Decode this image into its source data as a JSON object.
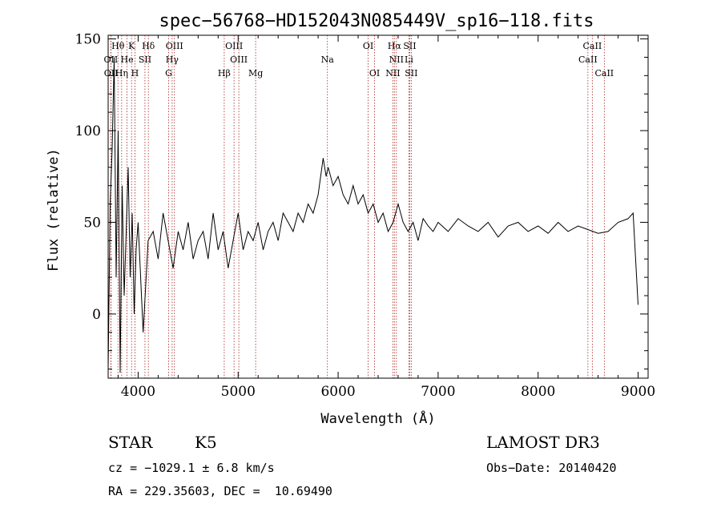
{
  "chart_data": {
    "type": "line",
    "title": "spec−56768−HD152043N085449V_sp16−118.fits",
    "xlabel": "Wavelength (Å)",
    "ylabel": "Flux (relative)",
    "xlim": [
      3700,
      9100
    ],
    "ylim": [
      -35,
      152
    ],
    "x_ticks": [
      4000,
      5000,
      6000,
      7000,
      8000,
      9000
    ],
    "y_ticks": [
      0,
      50,
      100,
      150
    ],
    "series": [
      {
        "name": "flux",
        "x": [
          3700,
          3720,
          3740,
          3760,
          3780,
          3800,
          3820,
          3840,
          3860,
          3880,
          3900,
          3920,
          3940,
          3960,
          3980,
          4000,
          4050,
          4100,
          4150,
          4200,
          4250,
          4300,
          4350,
          4400,
          4450,
          4500,
          4550,
          4600,
          4650,
          4700,
          4750,
          4800,
          4850,
          4900,
          4950,
          5000,
          5050,
          5100,
          5150,
          5200,
          5250,
          5300,
          5350,
          5400,
          5450,
          5500,
          5550,
          5600,
          5650,
          5700,
          5750,
          5800,
          5850,
          5880,
          5900,
          5950,
          6000,
          6050,
          6100,
          6150,
          6200,
          6250,
          6300,
          6350,
          6400,
          6450,
          6500,
          6550,
          6600,
          6650,
          6700,
          6750,
          6800,
          6850,
          6900,
          6950,
          7000,
          7100,
          7200,
          7300,
          7400,
          7500,
          7600,
          7700,
          7800,
          7900,
          8000,
          8100,
          8200,
          8300,
          8400,
          8500,
          8600,
          8700,
          8800,
          8900,
          8950,
          9000
        ],
        "y": [
          -30,
          60,
          90,
          140,
          20,
          100,
          -32,
          70,
          10,
          45,
          80,
          20,
          55,
          0,
          35,
          50,
          -10,
          40,
          45,
          30,
          55,
          40,
          25,
          45,
          35,
          50,
          30,
          40,
          45,
          30,
          55,
          35,
          45,
          25,
          40,
          55,
          35,
          45,
          40,
          50,
          35,
          45,
          50,
          40,
          55,
          50,
          45,
          55,
          50,
          60,
          55,
          65,
          85,
          75,
          80,
          70,
          75,
          65,
          60,
          70,
          60,
          65,
          55,
          60,
          50,
          55,
          45,
          50,
          60,
          50,
          45,
          50,
          40,
          52,
          48,
          45,
          50,
          45,
          52,
          48,
          45,
          50,
          42,
          48,
          50,
          45,
          48,
          44,
          50,
          45,
          48,
          46,
          44,
          45,
          50,
          52,
          55,
          5
        ]
      }
    ],
    "lines": [
      {
        "name": "Hθ",
        "wl": 3798,
        "row": 1
      },
      {
        "name": "K",
        "wl": 3934,
        "row": 1
      },
      {
        "name": "Hδ",
        "wl": 4102,
        "row": 1
      },
      {
        "name": "OIII",
        "wl": 4363,
        "row": 1
      },
      {
        "name": "OIII",
        "wl": 4959,
        "row": 1
      },
      {
        "name": "OI",
        "wl": 6300,
        "row": 1
      },
      {
        "name": "Hα",
        "wl": 6563,
        "row": 1
      },
      {
        "name": "SII",
        "wl": 6716,
        "row": 1
      },
      {
        "name": "CaII",
        "wl": 8542,
        "row": 1
      },
      {
        "name": "OII",
        "wl": 3727,
        "row": 2
      },
      {
        "name": "He",
        "wl": 3889,
        "row": 2
      },
      {
        "name": "SII",
        "wl": 4068,
        "row": 2
      },
      {
        "name": "Hγ",
        "wl": 4340,
        "row": 2
      },
      {
        "name": "OIII",
        "wl": 5007,
        "row": 2
      },
      {
        "name": "Na",
        "wl": 5893,
        "row": 2
      },
      {
        "name": "NII",
        "wl": 6583,
        "row": 2
      },
      {
        "name": "Li",
        "wl": 6708,
        "row": 2
      },
      {
        "name": "CaII",
        "wl": 8498,
        "row": 2
      },
      {
        "name": "OII",
        "wl": 3729,
        "row": 3
      },
      {
        "name": "Hη",
        "wl": 3835,
        "row": 3
      },
      {
        "name": "H",
        "wl": 3968,
        "row": 3
      },
      {
        "name": "G",
        "wl": 4305,
        "row": 3
      },
      {
        "name": "Hβ",
        "wl": 4861,
        "row": 3
      },
      {
        "name": "Mg",
        "wl": 5175,
        "row": 3
      },
      {
        "name": "OI",
        "wl": 6364,
        "row": 3
      },
      {
        "name": "NII",
        "wl": 6548,
        "row": 3
      },
      {
        "name": "SII",
        "wl": 6731,
        "row": 3
      },
      {
        "name": "CaII",
        "wl": 8662,
        "row": 3
      }
    ]
  },
  "info": {
    "object_type": "STAR",
    "subclass": "K5",
    "survey": "LAMOST DR3",
    "cz": "cz = −1029.1 ± 6.8 km/s",
    "obs_date": "Obs−Date: 20140420",
    "coords": "RA = 229.35603, DEC =  10.69490"
  },
  "colors": {
    "axis": "#000000",
    "spectrum": "#000000",
    "lines": "#aa2222"
  }
}
